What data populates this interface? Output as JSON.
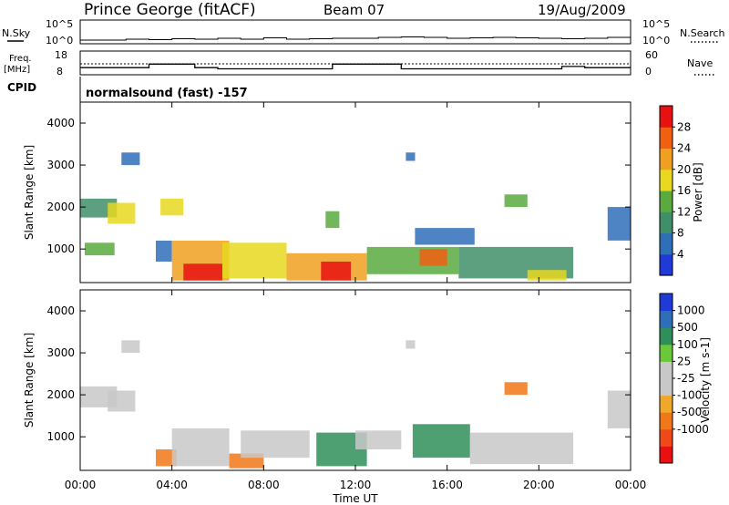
{
  "header": {
    "station": "Prince George (fitACF)",
    "beam": "Beam 07",
    "date": "19/Aug/2009"
  },
  "noise_panel": {
    "left_label": "N.Sky",
    "right_label": "N.Search",
    "left_ticks": [
      "10^5",
      "10^0"
    ],
    "right_ticks": [
      "10^5",
      "10^0"
    ]
  },
  "freq_panel": {
    "left_label_top": "Freq.",
    "left_label_unit": "[MHz]",
    "right_label": "Nave",
    "left_ticks": [
      "18",
      "8"
    ],
    "right_ticks": [
      "60",
      "0"
    ]
  },
  "cpid_panel": {
    "label": "CPID",
    "program": "normalsound (fast) -157"
  },
  "x_axis": {
    "label": "Time UT",
    "ticks": [
      "00:00",
      "04:00",
      "08:00",
      "12:00",
      "16:00",
      "20:00",
      "00:00"
    ]
  },
  "colors": {
    "power_scale": [
      "#1f3ad6",
      "#2f6fb8",
      "#3f8f6a",
      "#5aaa40",
      "#e8d820",
      "#f0a020",
      "#f06010",
      "#e81010"
    ],
    "velocity_scale": [
      "#e81010",
      "#f04818",
      "#f07818",
      "#f0a828",
      "#c8c8c8",
      "#c8c8c8",
      "#6ac83a",
      "#2f8f5a",
      "#2f6fb8",
      "#1f3ad6"
    ]
  },
  "chart_data": [
    {
      "type": "heatmap",
      "title": "",
      "xlabel": "",
      "ylabel": "Slant Range [km]",
      "xlim": [
        "00:00",
        "24:00"
      ],
      "ylim": [
        200,
        4500
      ],
      "yticks": [
        "1000",
        "2000",
        "3000",
        "4000"
      ],
      "colorbar": {
        "label": "Power [dB]",
        "ticks": [
          "4",
          "8",
          "12",
          "16",
          "20",
          "24",
          "28"
        ],
        "range": [
          0,
          32
        ]
      },
      "regions": [
        {
          "t0": 0.0,
          "t1": 1.6,
          "r0": 1750,
          "r1": 2200,
          "value": 10
        },
        {
          "t0": 0.2,
          "t1": 1.5,
          "r0": 850,
          "r1": 1150,
          "value": 14
        },
        {
          "t0": 1.2,
          "t1": 2.4,
          "r0": 1600,
          "r1": 2100,
          "value": 16
        },
        {
          "t0": 3.5,
          "t1": 4.5,
          "r0": 1800,
          "r1": 2200,
          "value": 16
        },
        {
          "t0": 3.3,
          "t1": 4.0,
          "r0": 700,
          "r1": 1200,
          "value": 6
        },
        {
          "t0": 4.0,
          "t1": 6.5,
          "r0": 250,
          "r1": 1200,
          "value": 22
        },
        {
          "t0": 4.5,
          "t1": 6.2,
          "r0": 250,
          "r1": 650,
          "value": 28
        },
        {
          "t0": 6.2,
          "t1": 9.0,
          "r0": 300,
          "r1": 1150,
          "value": 18
        },
        {
          "t0": 9.0,
          "t1": 12.5,
          "r0": 250,
          "r1": 900,
          "value": 20
        },
        {
          "t0": 10.5,
          "t1": 11.8,
          "r0": 250,
          "r1": 700,
          "value": 28
        },
        {
          "t0": 12.5,
          "t1": 16.5,
          "r0": 400,
          "r1": 1050,
          "value": 14
        },
        {
          "t0": 14.8,
          "t1": 16.0,
          "r0": 600,
          "r1": 1000,
          "value": 24
        },
        {
          "t0": 16.5,
          "t1": 21.5,
          "r0": 300,
          "r1": 1050,
          "value": 8
        },
        {
          "t0": 19.5,
          "t1": 21.2,
          "r0": 250,
          "r1": 500,
          "value": 18
        },
        {
          "t0": 14.6,
          "t1": 17.2,
          "r0": 1100,
          "r1": 1500,
          "value": 6
        },
        {
          "t0": 18.5,
          "t1": 19.5,
          "r0": 2000,
          "r1": 2300,
          "value": 14
        },
        {
          "t0": 23.0,
          "t1": 24.0,
          "r0": 1200,
          "r1": 2000,
          "value": 6
        },
        {
          "t0": 1.8,
          "t1": 2.6,
          "r0": 3000,
          "r1": 3300,
          "value": 5
        },
        {
          "t0": 14.2,
          "t1": 14.6,
          "r0": 3100,
          "r1": 3300,
          "value": 5
        },
        {
          "t0": 10.7,
          "t1": 11.3,
          "r0": 1500,
          "r1": 1900,
          "value": 14
        }
      ]
    },
    {
      "type": "heatmap",
      "title": "",
      "xlabel": "Time UT",
      "ylabel": "Slant Range [km]",
      "xlim": [
        "00:00",
        "24:00"
      ],
      "ylim": [
        200,
        4500
      ],
      "yticks": [
        "1000",
        "2000",
        "3000",
        "4000"
      ],
      "colorbar": {
        "label": "Velocity [m s-1]",
        "ticks": [
          "1000",
          "500",
          "100",
          "25",
          "-25",
          "-100",
          "-500",
          "-1000"
        ],
        "range": [
          -1200,
          1200
        ]
      },
      "regions": [
        {
          "t0": 0.0,
          "t1": 1.6,
          "r0": 1700,
          "r1": 2200,
          "value": 0
        },
        {
          "t0": 1.2,
          "t1": 2.4,
          "r0": 1600,
          "r1": 2100,
          "value": 0
        },
        {
          "t0": 3.3,
          "t1": 4.2,
          "r0": 300,
          "r1": 700,
          "value": -150
        },
        {
          "t0": 4.0,
          "t1": 6.5,
          "r0": 300,
          "r1": 1200,
          "value": 0
        },
        {
          "t0": 6.5,
          "t1": 8.0,
          "r0": 250,
          "r1": 600,
          "value": -150
        },
        {
          "t0": 7.0,
          "t1": 10.0,
          "r0": 500,
          "r1": 1150,
          "value": 0
        },
        {
          "t0": 10.3,
          "t1": 12.5,
          "r0": 300,
          "r1": 1100,
          "value": 150
        },
        {
          "t0": 12.0,
          "t1": 14.0,
          "r0": 700,
          "r1": 1150,
          "value": 0
        },
        {
          "t0": 14.5,
          "t1": 17.0,
          "r0": 500,
          "r1": 1300,
          "value": 150
        },
        {
          "t0": 17.0,
          "t1": 21.5,
          "r0": 350,
          "r1": 1100,
          "value": 0
        },
        {
          "t0": 18.5,
          "t1": 19.5,
          "r0": 2000,
          "r1": 2300,
          "value": -200
        },
        {
          "t0": 23.0,
          "t1": 24.0,
          "r0": 1200,
          "r1": 2100,
          "value": 0
        },
        {
          "t0": 1.8,
          "t1": 2.6,
          "r0": 3000,
          "r1": 3300,
          "value": 0
        },
        {
          "t0": 14.2,
          "t1": 14.6,
          "r0": 3100,
          "r1": 3300,
          "value": 0
        }
      ]
    }
  ],
  "time_series": {
    "nsky_levels": [
      0.2,
      0.2,
      0.3,
      0.25,
      0.35,
      0.3,
      0.4,
      0.3,
      0.45,
      0.3,
      0.35,
      0.4,
      0.4,
      0.5,
      0.55,
      0.5,
      0.4,
      0.45,
      0.5,
      0.45,
      0.4,
      0.35,
      0.4,
      0.5,
      0.6
    ],
    "freq_mhz": [
      11,
      11,
      11,
      12.5,
      12.5,
      11,
      10.5,
      10.5,
      10.5,
      10.5,
      10.5,
      12.5,
      12.5,
      12.5,
      10.5,
      10.5,
      10.5,
      10.5,
      10.5,
      10.5,
      10.5,
      11.5,
      11,
      11,
      11
    ]
  }
}
